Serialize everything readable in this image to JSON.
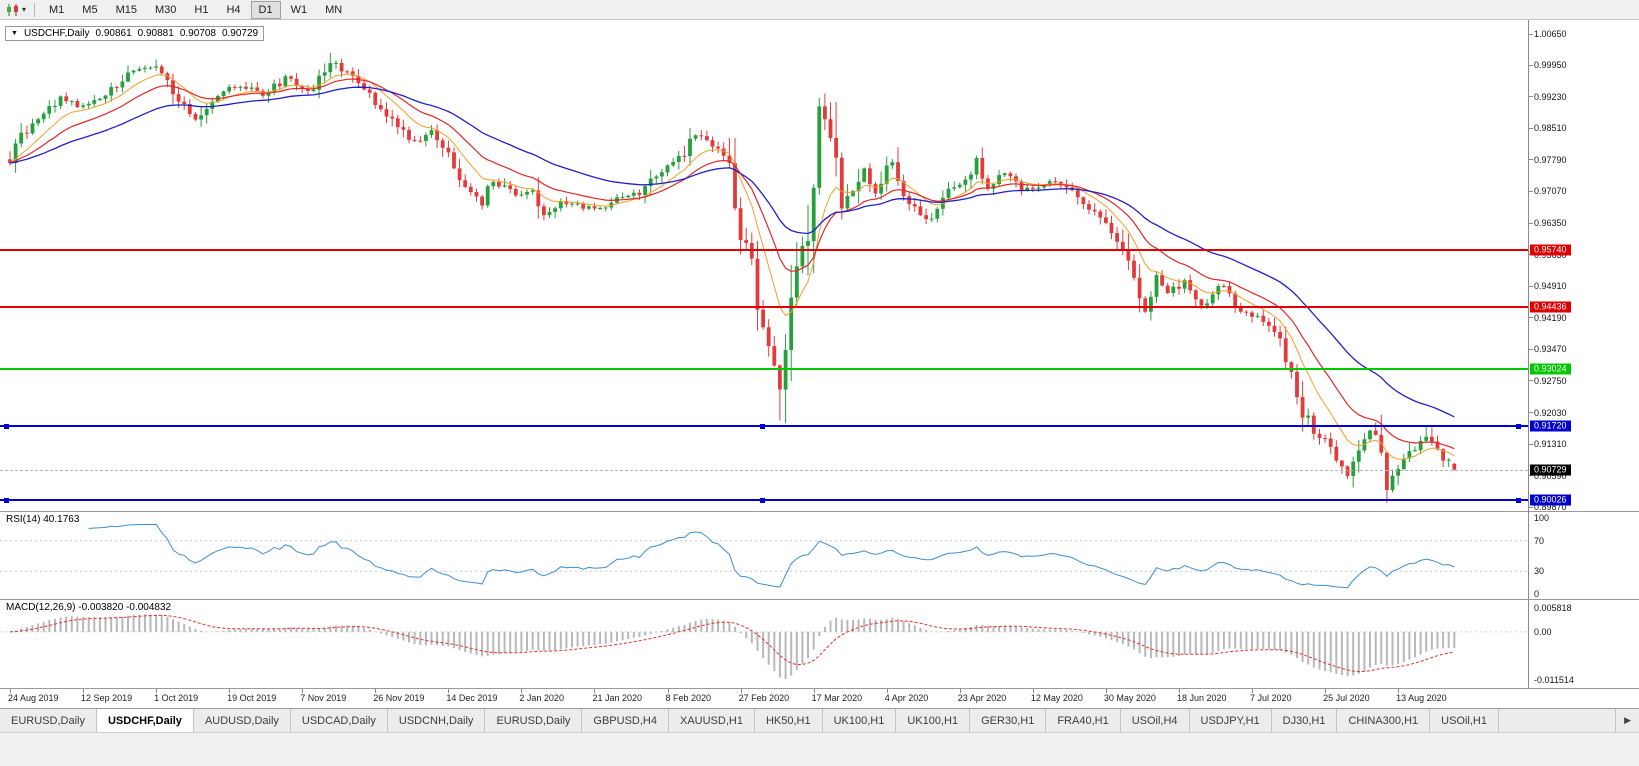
{
  "toolbar": {
    "chart_type_icon": "candlestick-chart-icon",
    "dropdown_icon": "chevron-down-icon",
    "timeframes": [
      "M1",
      "M5",
      "M15",
      "M30",
      "H1",
      "H4",
      "D1",
      "W1",
      "MN"
    ],
    "active_timeframe": "D1"
  },
  "title_bar": {
    "symbol": "USDCHF,Daily",
    "open": "0.90861",
    "high": "0.90881",
    "low": "0.90708",
    "close": "0.90729"
  },
  "chart_data": {
    "type": "candlestick",
    "symbol": "USDCHF",
    "period": "Daily",
    "candles_visible": 258,
    "price_range_visible": [
      0.8976,
      1.00795
    ],
    "up_color": "#25a03c",
    "down_color": "#e23b3b",
    "close_path_anchors": [
      [
        0,
        0.978
      ],
      [
        2,
        0.983
      ],
      [
        5,
        0.987
      ],
      [
        9,
        0.992
      ],
      [
        13,
        0.99
      ],
      [
        17,
        0.993
      ],
      [
        21,
        0.9975
      ],
      [
        26,
        0.999
      ],
      [
        29,
        0.994
      ],
      [
        33,
        0.987
      ],
      [
        37,
        0.993
      ],
      [
        41,
        0.995
      ],
      [
        45,
        0.9925
      ],
      [
        49,
        0.9965
      ],
      [
        54,
        0.9935
      ],
      [
        57,
        1.0005
      ],
      [
        60,
        0.9975
      ],
      [
        64,
        0.993
      ],
      [
        68,
        0.9865
      ],
      [
        72,
        0.982
      ],
      [
        75,
        0.9845
      ],
      [
        78,
        0.979
      ],
      [
        81,
        0.972
      ],
      [
        84,
        0.968
      ],
      [
        86,
        0.973
      ],
      [
        90,
        0.97
      ],
      [
        93,
        0.9715
      ],
      [
        95,
        0.965
      ],
      [
        98,
        0.9685
      ],
      [
        102,
        0.967
      ],
      [
        106,
        0.9675
      ],
      [
        109,
        0.97
      ],
      [
        112,
        0.9705
      ],
      [
        115,
        0.9745
      ],
      [
        119,
        0.978
      ],
      [
        122,
        0.9835
      ],
      [
        125,
        0.981
      ],
      [
        128,
        0.9775
      ],
      [
        130,
        0.962
      ],
      [
        132,
        0.955
      ],
      [
        134,
        0.938
      ],
      [
        136,
        0.93
      ],
      [
        137,
        0.925
      ],
      [
        138,
        0.933
      ],
      [
        140,
        0.952
      ],
      [
        142,
        0.962
      ],
      [
        144,
        0.99
      ],
      [
        146,
        0.985
      ],
      [
        148,
        0.966
      ],
      [
        150,
        0.971
      ],
      [
        152,
        0.976
      ],
      [
        154,
        0.97
      ],
      [
        157,
        0.978
      ],
      [
        159,
        0.97
      ],
      [
        162,
        0.9655
      ],
      [
        164,
        0.964
      ],
      [
        166,
        0.97
      ],
      [
        170,
        0.9735
      ],
      [
        172,
        0.978
      ],
      [
        174,
        0.972
      ],
      [
        177,
        0.9745
      ],
      [
        180,
        0.971
      ],
      [
        183,
        0.9715
      ],
      [
        186,
        0.973
      ],
      [
        189,
        0.971
      ],
      [
        192,
        0.967
      ],
      [
        196,
        0.9615
      ],
      [
        198,
        0.958
      ],
      [
        200,
        0.95
      ],
      [
        202,
        0.943
      ],
      [
        204,
        0.951
      ],
      [
        206,
        0.9475
      ],
      [
        209,
        0.95
      ],
      [
        212,
        0.9445
      ],
      [
        214,
        0.947
      ],
      [
        216,
        0.9495
      ],
      [
        218,
        0.944
      ],
      [
        221,
        0.9425
      ],
      [
        224,
        0.9405
      ],
      [
        226,
        0.937
      ],
      [
        228,
        0.93
      ],
      [
        230,
        0.921
      ],
      [
        232,
        0.916
      ],
      [
        234,
        0.9135
      ],
      [
        236,
        0.9105
      ],
      [
        238,
        0.906
      ],
      [
        240,
        0.912
      ],
      [
        242,
        0.9165
      ],
      [
        244,
        0.912
      ],
      [
        245,
        0.9035
      ],
      [
        247,
        0.907
      ],
      [
        249,
        0.911
      ],
      [
        251,
        0.9145
      ],
      [
        252,
        0.915
      ],
      [
        254,
        0.9115
      ],
      [
        256,
        0.909
      ],
      [
        257,
        0.90729
      ]
    ],
    "wick_high_overrides": {
      "26": 1.0008,
      "57": 1.0023,
      "144": 0.992,
      "252": 0.917
    },
    "wick_low_overrides": {
      "137": 0.9185,
      "245": 0.9003
    },
    "last_candle": {
      "open": 0.90861,
      "high": 0.90881,
      "low": 0.90708,
      "close": 0.90729
    },
    "moving_averages": [
      {
        "name": "fast-ma",
        "color": "#f0a028",
        "period": 9
      },
      {
        "name": "medium-ma",
        "color": "#e02828",
        "period": 18
      },
      {
        "name": "slow-ma",
        "color": "#2020c8",
        "period": 38
      }
    ],
    "horizontal_levels": [
      {
        "price": 0.9574,
        "label": "0.95740",
        "color": "#e00000",
        "width": 2,
        "handles": false
      },
      {
        "price": 0.94436,
        "label": "0.94436",
        "color": "#e00000",
        "width": 2,
        "handles": false
      },
      {
        "price": 0.93024,
        "label": "0.93024",
        "color": "#00c800",
        "width": 2,
        "handles": false
      },
      {
        "price": 0.9172,
        "label": "0.91720",
        "color": "#0000d0",
        "width": 2,
        "handles": true
      },
      {
        "price": 0.90026,
        "label": "0.90026",
        "color": "#0000d0",
        "width": 2,
        "handles": true
      }
    ],
    "current_price": {
      "value": 0.90729,
      "label": "0.90729",
      "color": "#000000"
    },
    "price_axis_labels": [
      "1.00650",
      "0.99950",
      "0.99230",
      "0.98510",
      "0.97790",
      "0.97070",
      "0.96350",
      "0.95630",
      "0.94910",
      "0.94190",
      "0.93470",
      "0.92750",
      "0.92030",
      "0.91310",
      "0.90590",
      "0.89870"
    ],
    "date_axis_labels": [
      "24 Aug 2019",
      "12 Sep 2019",
      "1 Oct 2019",
      "19 Oct 2019",
      "7 Nov 2019",
      "26 Nov 2019",
      "14 Dec 2019",
      "2 Jan 2020",
      "21 Jan 2020",
      "8 Feb 2020",
      "27 Feb 2020",
      "17 Mar 2020",
      "4 Apr 2020",
      "23 Apr 2020",
      "12 May 2020",
      "30 May 2020",
      "18 Jun 2020",
      "7 Jul 2020",
      "25 Jul 2020",
      "13 Aug 2020"
    ],
    "indicators": [
      {
        "name": "RSI",
        "value_label": "RSI(14) 40.1763",
        "current": 40.1763,
        "color": "#3e8ed0",
        "levels": [
          70,
          30
        ],
        "axis_labels": [
          "100",
          "70",
          "30",
          "0"
        ],
        "range": [
          0,
          100
        ]
      },
      {
        "name": "MACD",
        "value_label": "MACD(12,26,9) -0.003820 -0.004832",
        "values": [
          -0.00382,
          -0.004832
        ],
        "histogram_color": "#b8b8b8",
        "signal_color": "#e03030",
        "axis_labels": [
          "0.005818",
          "0.00",
          "-0.011514"
        ],
        "range": [
          -0.0125,
          0.0062
        ]
      }
    ]
  },
  "tabs": {
    "active_index": 1,
    "scroll_right_label": "▶",
    "items": [
      "EURUSD,Daily",
      "USDCHF,Daily",
      "AUDUSD,Daily",
      "USDCAD,Daily",
      "USDCNH,Daily",
      "EURUSD,Daily",
      "GBPUSD,H4",
      "XAUUSD,H1",
      "HK50,H1",
      "UK100,H1",
      "UK100,H1",
      "GER30,H1",
      "FRA40,H1",
      "USOil,H4",
      "USDJPY,H1",
      "DJ30,H1",
      "CHINA300,H1",
      "USOil,H1"
    ]
  }
}
